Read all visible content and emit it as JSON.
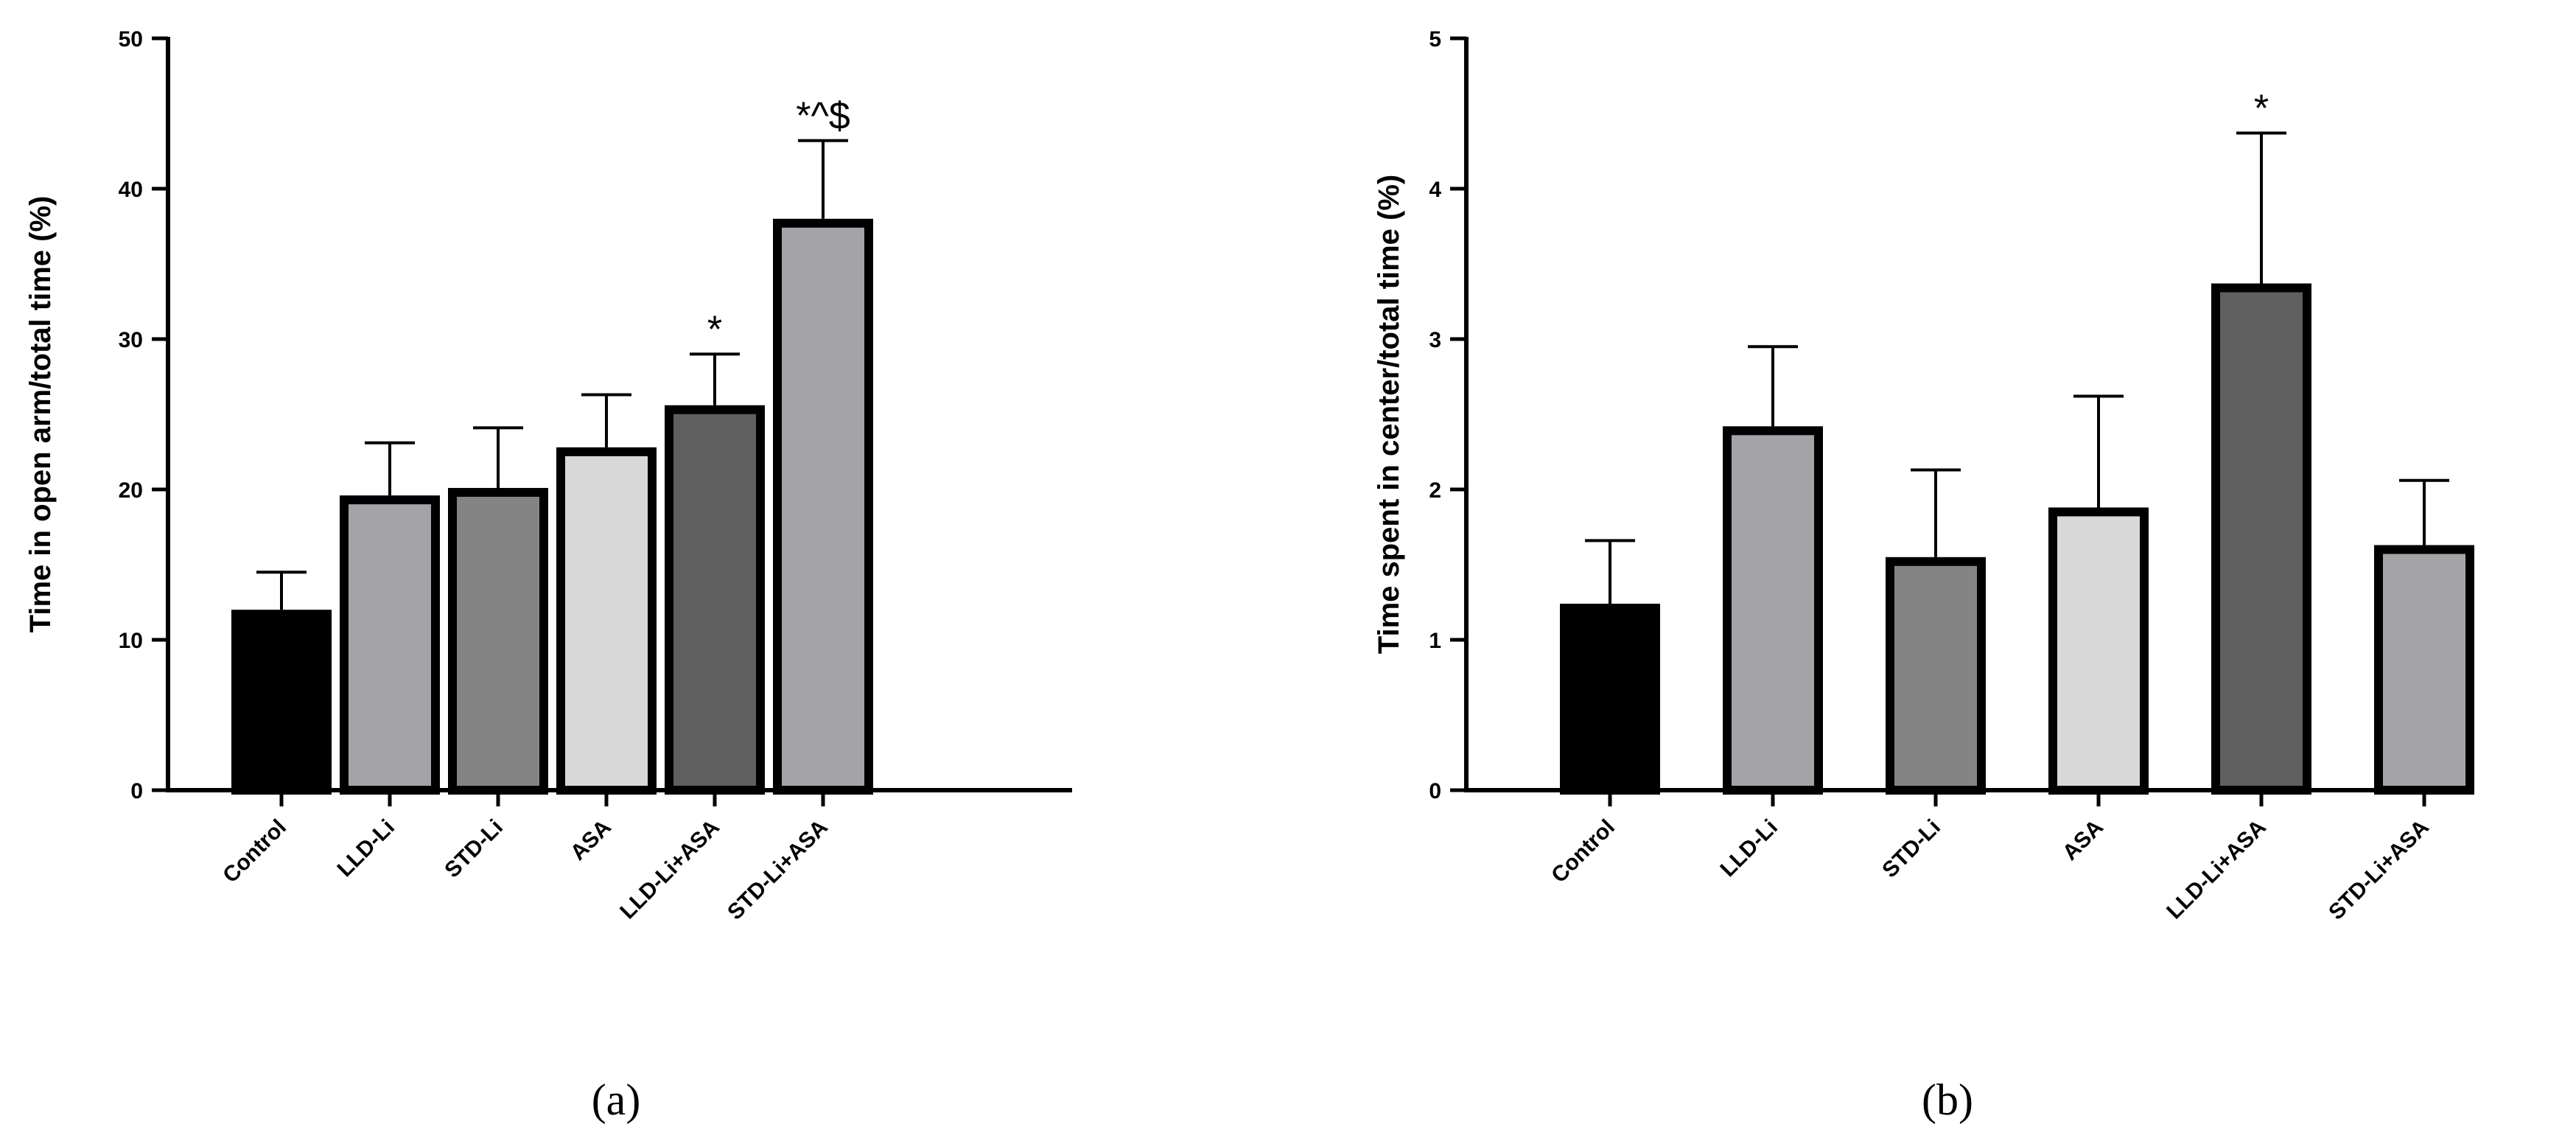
{
  "chart_data": [
    {
      "type": "bar",
      "panel_label": "(a)",
      "ylabel": "Time in open arm/total time (%)",
      "ylim": [
        0,
        50
      ],
      "yticks": [
        0,
        10,
        20,
        30,
        40,
        50
      ],
      "categories": [
        "Control",
        "LLD-Li",
        "STD-Li",
        "ASA",
        "LLD-Li+ASA",
        "STD-Li+ASA"
      ],
      "values": [
        12,
        19.6,
        20.1,
        22.8,
        25.6,
        38
      ],
      "errors": [
        2.5,
        3.5,
        4.0,
        3.5,
        3.4,
        5.2
      ],
      "annotations": [
        "",
        "",
        "",
        "",
        "*",
        "*^$"
      ],
      "colors": [
        "#000000",
        "#a4a4a8",
        "#848484",
        "#d8d8d8",
        "#5f5f5f",
        "#a4a4a8"
      ],
      "grid": false,
      "legend": "none"
    },
    {
      "type": "bar",
      "panel_label": "(b)",
      "ylabel": "Time spent in center/total time (%)",
      "ylim": [
        0,
        5
      ],
      "yticks": [
        0,
        1,
        2,
        3,
        4,
        5
      ],
      "categories": [
        "Control",
        "LLD-Li",
        "STD-Li",
        "ASA",
        "LLD-Li+ASA",
        "STD-Li+ASA"
      ],
      "values": [
        1.24,
        2.42,
        1.55,
        1.88,
        3.37,
        1.63
      ],
      "errors": [
        0.42,
        0.53,
        0.58,
        0.74,
        1.0,
        0.43
      ],
      "annotations": [
        "",
        "",
        "",
        "",
        "*",
        ""
      ],
      "colors": [
        "#000000",
        "#a4a4a8",
        "#848484",
        "#d8d8d8",
        "#5f5f5f",
        "#a4a4a8"
      ],
      "grid": false,
      "legend": "none"
    }
  ]
}
